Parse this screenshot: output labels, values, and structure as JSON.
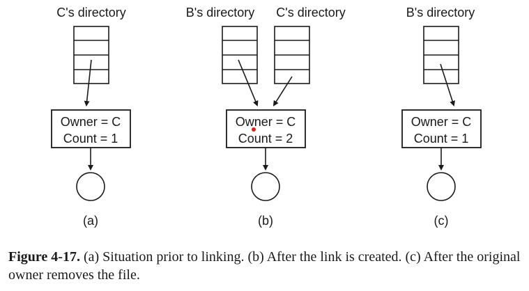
{
  "panels": [
    {
      "directories": [
        "C's directory"
      ],
      "owner_text": "Owner = C",
      "count_text": "Count = 1",
      "label": "(a)"
    },
    {
      "directories": [
        "B's directory",
        "C's directory"
      ],
      "owner_text": "Owner = C",
      "count_text": "Count = 2",
      "label": "(b)"
    },
    {
      "directories": [
        "B's directory"
      ],
      "owner_text": "Owner = C",
      "count_text": "Count = 1",
      "label": "(c)"
    }
  ],
  "caption": {
    "figure_number": "Figure 4-17.",
    "text": " (a) Situation prior to linking. (b) After the link is created. (c) After the original owner removes the file."
  },
  "colors": {
    "line": "#1a1a1a",
    "marker_dot": "#e0201a"
  }
}
